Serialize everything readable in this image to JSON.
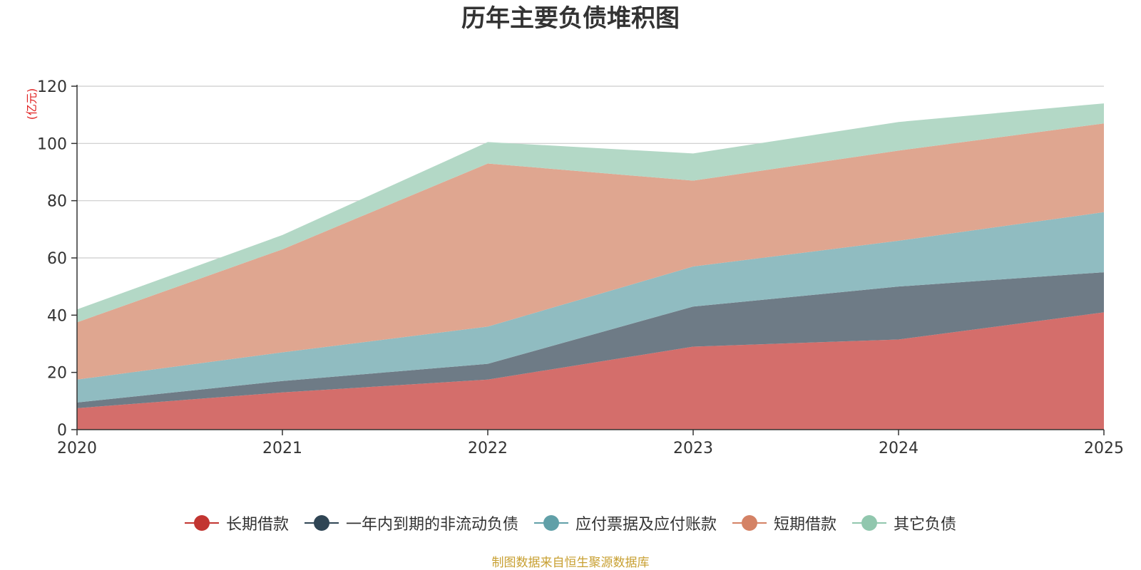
{
  "chart_data": {
    "type": "area",
    "stacked": true,
    "title": "历年主要负债堆积图",
    "unit": "(亿元)",
    "categories": [
      "2020",
      "2021",
      "2022",
      "2023",
      "2024",
      "2025"
    ],
    "ylim": [
      0,
      120
    ],
    "yticks": [
      "0",
      "20",
      "40",
      "60",
      "80",
      "100",
      "120"
    ],
    "grid": true,
    "legend_position": "bottom",
    "series": [
      {
        "name": "长期借款",
        "color": "#c23531",
        "fill": "#d46e6b",
        "values": [
          7.5,
          13,
          17.5,
          29,
          31.5,
          41
        ]
      },
      {
        "name": "一年内到期的非流动负债",
        "color": "#2f4554",
        "fill": "#6e7b86",
        "values": [
          2,
          4,
          5.5,
          14,
          18.5,
          14
        ]
      },
      {
        "name": "应付票据及应付账款",
        "color": "#61a0a8",
        "fill": "#90bcc1",
        "values": [
          8,
          10,
          13,
          14,
          16,
          21
        ]
      },
      {
        "name": "短期借款",
        "color": "#d48265",
        "fill": "#dfa690",
        "values": [
          20,
          36,
          57,
          30,
          31.5,
          31
        ]
      },
      {
        "name": "其它负债",
        "color": "#91c7ae",
        "fill": "#b3d8c6",
        "values": [
          4.5,
          5,
          7.5,
          9.5,
          10,
          7
        ]
      }
    ]
  },
  "source_text": "制图数据来自恒生聚源数据库"
}
